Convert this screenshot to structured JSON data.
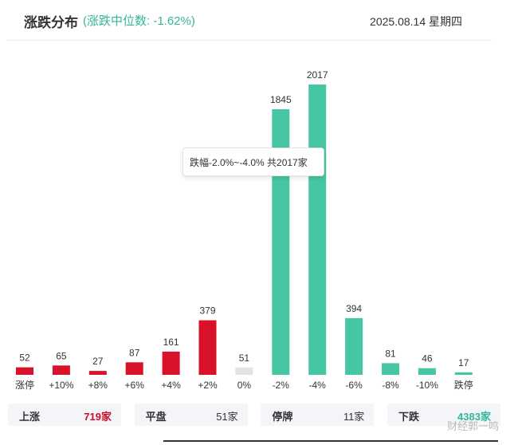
{
  "header": {
    "title": "涨跌分布",
    "median_text": "(涨跌中位数: -1.62%)",
    "date": "2025.08.14 星期四"
  },
  "chart_data": {
    "type": "bar",
    "categories": [
      "涨停",
      "+10%",
      "+8%",
      "+6%",
      "+4%",
      "+2%",
      "0%",
      "-2%",
      "-4%",
      "-6%",
      "-8%",
      "-10%",
      "跌停"
    ],
    "values": [
      52,
      65,
      27,
      87,
      161,
      379,
      51,
      1845,
      2017,
      394,
      81,
      46,
      17
    ],
    "colors": [
      "#d7122a",
      "#d7122a",
      "#d7122a",
      "#d7122a",
      "#d7122a",
      "#d7122a",
      "#e3e3e3",
      "#46c6a3",
      "#46c6a3",
      "#46c6a3",
      "#46c6a3",
      "#46c6a3",
      "#46c6a3"
    ],
    "ylim": [
      0,
      2017
    ],
    "tooltip": "跌幅-2.0%~-4.0% 共2017家"
  },
  "summary": [
    {
      "label": "上涨",
      "value": "719家",
      "tone": "up"
    },
    {
      "label": "平盘",
      "value": "51家",
      "tone": "flat"
    },
    {
      "label": "停牌",
      "value": "11家",
      "tone": "flat"
    },
    {
      "label": "下跌",
      "value": "4383家",
      "tone": "down"
    }
  ],
  "watermark": "财经郭一鸣",
  "colors": {
    "up": "#d7122a",
    "down": "#46c6a3",
    "flat": "#e3e3e3"
  }
}
